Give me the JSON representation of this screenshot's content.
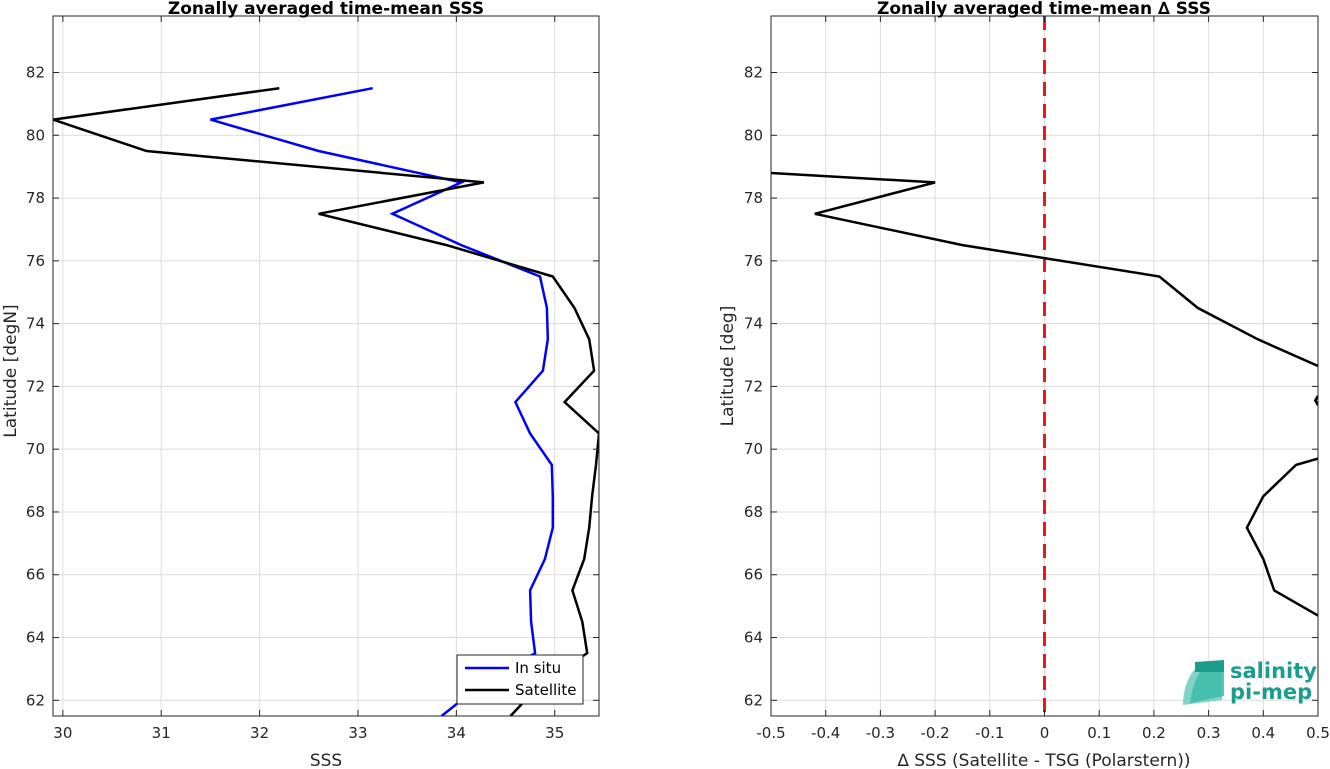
{
  "chart_data": [
    {
      "type": "line",
      "title": "Zonally averaged time-mean SSS",
      "xlabel": "SSS",
      "ylabel": "Latitude [degN]",
      "xlim": [
        29.9,
        35.45
      ],
      "ylim": [
        61.5,
        83.8
      ],
      "xticks": [
        30,
        31,
        32,
        33,
        34,
        35
      ],
      "yticks": [
        62,
        64,
        66,
        68,
        70,
        72,
        74,
        76,
        78,
        80,
        82
      ],
      "grid": true,
      "legend": "bottom-right",
      "series": [
        {
          "name": "In situ",
          "color": "#0000ff",
          "x": [
            33.15,
            31.5,
            32.6,
            34.05,
            33.35,
            34.05,
            34.85,
            34.92,
            34.93,
            34.88,
            34.6,
            34.75,
            34.97,
            34.98,
            34.98,
            34.9,
            34.75,
            34.76,
            34.8,
            34.25,
            33.85
          ],
          "y": [
            81.5,
            80.5,
            79.5,
            78.5,
            77.5,
            76.5,
            75.5,
            74.5,
            73.5,
            72.5,
            71.5,
            70.5,
            69.5,
            68.5,
            67.5,
            66.5,
            65.5,
            64.5,
            63.5,
            62.5,
            61.5
          ]
        },
        {
          "name": "Satellite",
          "color": "#000000",
          "x": [
            32.2,
            29.9,
            30.85,
            34.28,
            32.6,
            33.9,
            34.98,
            35.2,
            35.35,
            35.4,
            35.1,
            35.45,
            35.42,
            35.38,
            35.35,
            35.3,
            35.18,
            35.28,
            35.33,
            34.85,
            34.55
          ],
          "y": [
            81.5,
            80.5,
            79.5,
            78.5,
            77.5,
            76.5,
            75.5,
            74.5,
            73.5,
            72.5,
            71.5,
            70.5,
            69.5,
            68.5,
            67.5,
            66.5,
            65.5,
            64.5,
            63.5,
            62.5,
            61.5
          ]
        }
      ]
    },
    {
      "type": "line",
      "title": "Zonally averaged time-mean ∆ SSS",
      "xlabel": "∆ SSS (Satellite - TSG (Polarstern))",
      "ylabel": "Latitude [deg]",
      "xlim": [
        -0.5,
        0.5
      ],
      "ylim": [
        61.5,
        83.8
      ],
      "xticks": [
        -0.5,
        -0.4,
        -0.3,
        -0.2,
        -0.1,
        0,
        0.1,
        0.2,
        0.3,
        0.4,
        0.5
      ],
      "xticklabels": [
        "-0.5",
        "-0.4",
        "-0.3",
        "-0.2",
        "-0.1",
        "0",
        "0.1",
        "0.2",
        "0.3",
        "0.4",
        "0.5"
      ],
      "yticks": [
        62,
        64,
        66,
        68,
        70,
        72,
        74,
        76,
        78,
        80,
        82
      ],
      "grid": true,
      "reference_line": {
        "x": 0,
        "color": "#e8191b",
        "style": "dashed"
      },
      "series": [
        {
          "color": "#000000",
          "segments": [
            {
              "x": [
                -0.5,
                -0.2,
                -0.42,
                -0.15,
                0.21,
                0.28,
                0.39,
                0.5
              ],
              "y": [
                78.8,
                78.5,
                77.5,
                76.5,
                75.5,
                74.5,
                73.5,
                72.65
              ]
            },
            {
              "x": [
                0.5,
                0.495,
                0.5
              ],
              "y": [
                71.7,
                71.55,
                71.4
              ]
            },
            {
              "x": [
                0.5,
                0.46,
                0.4,
                0.37,
                0.4,
                0.42,
                0.5
              ],
              "y": [
                69.7,
                69.5,
                68.5,
                67.5,
                66.5,
                65.5,
                64.7
              ]
            }
          ]
        }
      ]
    }
  ],
  "logo": {
    "line1": "salinity",
    "line2": "pi-mep"
  }
}
